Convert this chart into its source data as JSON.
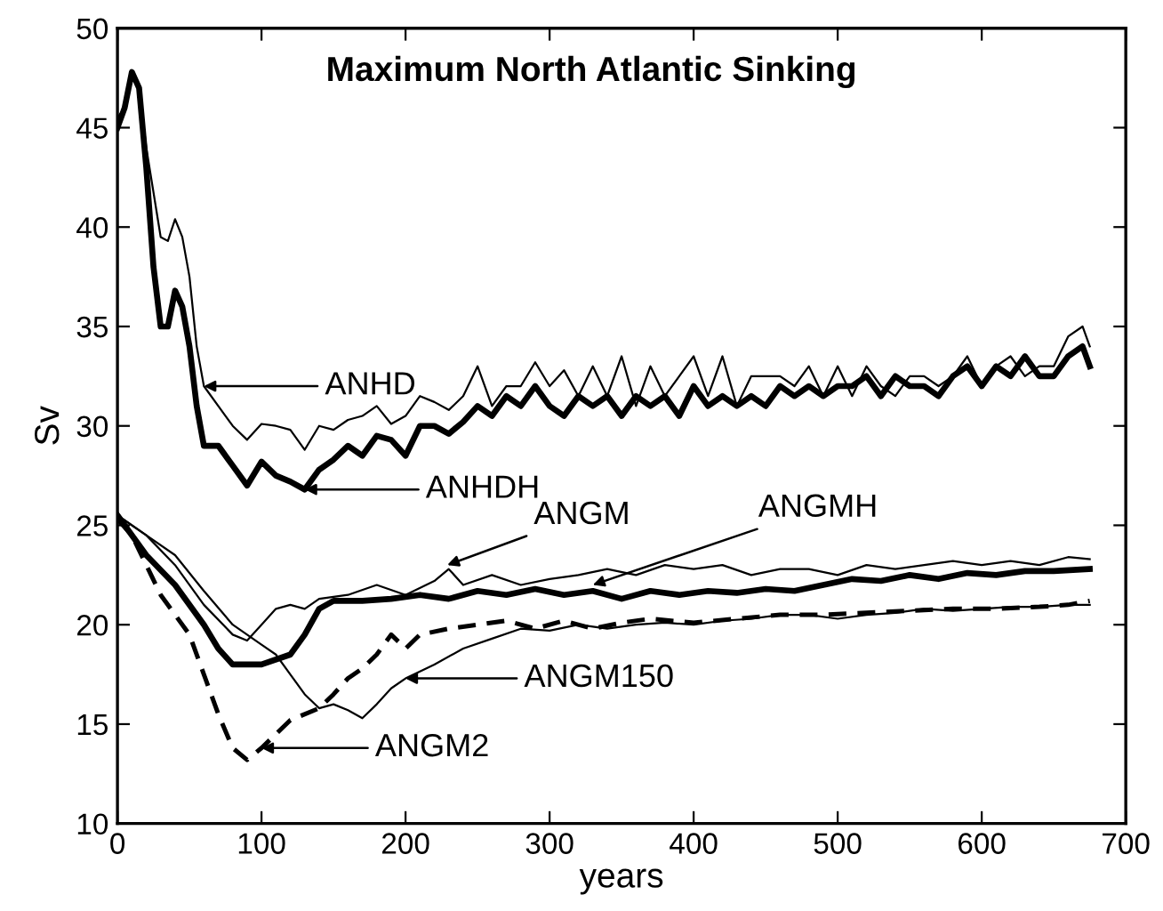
{
  "chart_data": {
    "type": "line",
    "title": "Maximum North Atlantic Sinking",
    "xlabel": "years",
    "ylabel": "Sv",
    "xlim": [
      0,
      700
    ],
    "xticks": [
      0,
      100,
      200,
      300,
      400,
      500,
      600,
      700
    ],
    "ylim": [
      10,
      50
    ],
    "yticks": [
      10,
      15,
      20,
      25,
      30,
      35,
      40,
      45,
      50
    ],
    "grid": false,
    "legend": false,
    "marker": "none",
    "series": [
      {
        "color": "#000000",
        "line_style": "solid",
        "x": [
          0,
          5,
          10,
          15,
          20,
          30,
          35,
          40,
          45,
          50,
          55,
          60,
          70,
          80,
          90,
          100,
          110,
          120,
          130,
          140,
          150,
          160,
          170,
          180,
          190,
          200,
          210,
          220,
          230,
          240,
          250,
          260,
          270,
          280,
          290,
          300,
          310,
          320,
          330,
          340,
          350,
          360,
          370,
          380,
          390,
          400,
          410,
          420,
          430,
          440,
          450,
          460,
          470,
          480,
          490,
          500,
          510,
          520,
          530,
          540,
          550,
          560,
          570,
          580,
          590,
          600,
          610,
          620,
          630,
          640,
          650,
          660,
          670,
          675
        ],
        "values": [
          45.5,
          46,
          47.8,
          47,
          44,
          39.5,
          39.3,
          40.4,
          39.5,
          37.5,
          34,
          32,
          31,
          30,
          29.3,
          30.1,
          30,
          29.8,
          28.8,
          30,
          29.8,
          30.3,
          30.5,
          31,
          30.1,
          30.5,
          31.5,
          31.2,
          30.8,
          31.5,
          33,
          31,
          32,
          32,
          33.2,
          32,
          32.8,
          31.5,
          33,
          31.5,
          33.5,
          31,
          33,
          31.5,
          32.5,
          33.5,
          31.5,
          33.5,
          31,
          32.5,
          32.5,
          32.5,
          32,
          33,
          31.5,
          33,
          31.5,
          33,
          32,
          31.5,
          32.5,
          32.5,
          32,
          32.5,
          33.5,
          32,
          33,
          33.5,
          32.5,
          33,
          33,
          34.5,
          35,
          34
        ]
      },
      {
        "color": "#000000",
        "line_style": "solid",
        "x": [
          0,
          5,
          10,
          15,
          20,
          25,
          30,
          35,
          40,
          45,
          50,
          55,
          60,
          70,
          80,
          90,
          100,
          110,
          120,
          130,
          140,
          150,
          160,
          170,
          180,
          190,
          200,
          210,
          220,
          230,
          240,
          250,
          260,
          270,
          280,
          290,
          300,
          310,
          320,
          330,
          340,
          350,
          360,
          370,
          380,
          390,
          400,
          410,
          420,
          430,
          440,
          450,
          460,
          470,
          480,
          490,
          500,
          510,
          520,
          530,
          540,
          550,
          560,
          570,
          580,
          590,
          600,
          610,
          620,
          630,
          640,
          650,
          660,
          670,
          675
        ],
        "values": [
          45,
          46,
          47.8,
          47,
          43,
          38,
          35,
          35,
          36.8,
          36,
          34,
          31,
          29,
          29,
          28,
          27,
          28.2,
          27.5,
          27.2,
          26.8,
          27.8,
          28.3,
          29,
          28.5,
          29.5,
          29.3,
          28.5,
          30,
          30,
          29.6,
          30.2,
          31,
          30.5,
          31.5,
          31,
          32,
          31,
          30.5,
          31.5,
          31,
          31.5,
          30.5,
          31.5,
          31,
          31.5,
          30.5,
          32,
          31,
          31.5,
          31,
          31.5,
          31,
          32,
          31.5,
          32,
          31.5,
          32,
          32,
          32.5,
          31.5,
          32.5,
          32,
          32,
          31.5,
          32.5,
          33,
          32,
          33,
          32.5,
          33.5,
          32.5,
          32.5,
          33.5,
          34,
          33
        ]
      },
      {
        "color": "#000000",
        "line_style": "solid",
        "x": [
          0,
          20,
          40,
          60,
          80,
          90,
          100,
          110,
          120,
          130,
          140,
          160,
          180,
          200,
          220,
          230,
          240,
          260,
          280,
          300,
          320,
          340,
          360,
          380,
          400,
          420,
          440,
          460,
          480,
          500,
          520,
          540,
          560,
          580,
          600,
          620,
          640,
          660,
          675
        ],
        "values": [
          25.5,
          24.5,
          23,
          21,
          19.5,
          19.2,
          20,
          20.8,
          21,
          20.8,
          21.3,
          21.5,
          22,
          21.5,
          22.2,
          22.8,
          22,
          22.5,
          22,
          22.3,
          22.5,
          22.8,
          22.5,
          23,
          22.8,
          23,
          22.5,
          22.8,
          22.8,
          22.5,
          23,
          22.8,
          23,
          23.2,
          23,
          23.2,
          23,
          23.4,
          23.3
        ]
      },
      {
        "color": "#000000",
        "line_style": "solid",
        "x": [
          0,
          20,
          40,
          60,
          70,
          80,
          100,
          120,
          130,
          140,
          150,
          170,
          190,
          210,
          230,
          250,
          270,
          290,
          310,
          330,
          350,
          370,
          390,
          410,
          430,
          450,
          470,
          490,
          510,
          530,
          550,
          570,
          590,
          610,
          630,
          650,
          675
        ],
        "values": [
          25.5,
          23.5,
          22,
          20,
          18.8,
          18,
          18,
          18.5,
          19.5,
          20.8,
          21.2,
          21.2,
          21.3,
          21.5,
          21.3,
          21.7,
          21.5,
          21.8,
          21.5,
          21.7,
          21.3,
          21.7,
          21.5,
          21.7,
          21.6,
          21.8,
          21.7,
          22,
          22.3,
          22.2,
          22.5,
          22.3,
          22.6,
          22.5,
          22.7,
          22.7,
          22.8
        ]
      },
      {
        "color": "#000000",
        "line_style": "solid",
        "x": [
          0,
          20,
          40,
          60,
          80,
          100,
          110,
          120,
          130,
          140,
          150,
          160,
          170,
          180,
          190,
          200,
          220,
          240,
          260,
          280,
          300,
          320,
          340,
          360,
          380,
          400,
          420,
          440,
          460,
          480,
          500,
          520,
          540,
          560,
          580,
          600,
          620,
          640,
          660,
          675
        ],
        "values": [
          25.5,
          24.5,
          23.5,
          21.7,
          20,
          19,
          18.5,
          17.5,
          16.5,
          15.8,
          16,
          15.7,
          15.3,
          16,
          16.8,
          17.3,
          18,
          18.8,
          19.3,
          19.8,
          19.7,
          20,
          19.8,
          20,
          20.1,
          20,
          20.2,
          20.3,
          20.5,
          20.5,
          20.3,
          20.5,
          20.6,
          20.8,
          20.7,
          20.8,
          20.9,
          20.9,
          21,
          21
        ]
      },
      {
        "color": "#000000",
        "line_style": "dashed",
        "x": [
          0,
          10,
          20,
          30,
          40,
          50,
          60,
          70,
          80,
          90,
          100,
          110,
          120,
          140,
          150,
          160,
          170,
          180,
          190,
          200,
          210,
          230,
          250,
          270,
          290,
          310,
          330,
          350,
          370,
          400,
          430,
          460,
          490,
          520,
          550,
          580,
          610,
          640,
          660,
          675
        ],
        "values": [
          25.3,
          24.5,
          23,
          21.5,
          20.5,
          19.5,
          17.5,
          15.5,
          13.8,
          13.2,
          13.8,
          14.5,
          15.2,
          15.8,
          16.5,
          17.3,
          17.8,
          18.5,
          19.5,
          18.8,
          19.5,
          19.8,
          20,
          20.2,
          19.8,
          20.2,
          19.8,
          20.1,
          20.3,
          20.1,
          20.3,
          20.5,
          20.5,
          20.6,
          20.7,
          20.8,
          20.8,
          20.9,
          21,
          21.2
        ]
      }
    ],
    "annotations": [
      "ANHD",
      "ANHDH",
      {
        "text": "ANGM",
        "x": 229,
        "y": 23.0
      },
      {
        "text": "ANGMH",
        "x": 330,
        "y": 22.0
      },
      "ANGM150",
      "ANGM2"
    ]
  }
}
